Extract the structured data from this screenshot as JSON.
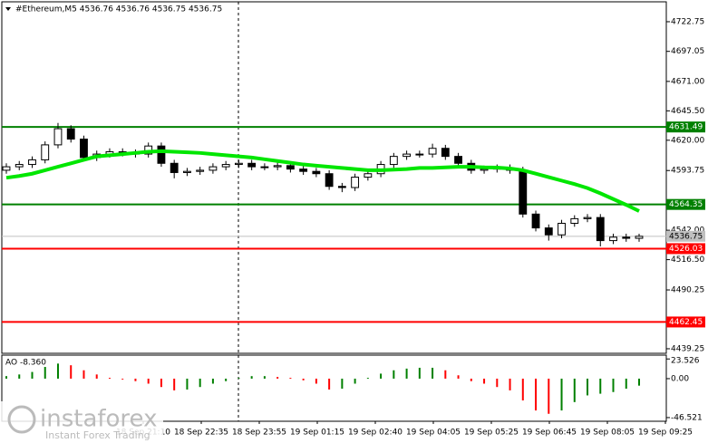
{
  "chart_data": {
    "type": "candlestick",
    "title": "#Ethereum,M5  4536.76 4536.76 4536.75 4536.75",
    "open": [
      4594,
      4597,
      4599,
      4603,
      4616,
      4630,
      4621,
      4605,
      4608,
      4610,
      4609,
      4608,
      4615,
      4600,
      4592,
      4593,
      4594,
      4597,
      4599,
      4600,
      4597,
      4597,
      4598,
      4595,
      4593,
      4591,
      4580,
      4579,
      4588,
      4591,
      4599,
      4606,
      4608,
      4608,
      4613,
      4606,
      4600,
      4594,
      4595,
      4596,
      4594,
      4556,
      4544,
      4538,
      4548,
      4552,
      4553,
      4533,
      4536,
      4535
    ],
    "high": [
      4600,
      4602,
      4606,
      4619,
      4635,
      4633,
      4624,
      4611,
      4613,
      4613,
      4612,
      4618,
      4618,
      4603,
      4596,
      4597,
      4600,
      4602,
      4603,
      4603,
      4600,
      4601,
      4601,
      4598,
      4596,
      4594,
      4583,
      4591,
      4594,
      4602,
      4609,
      4611,
      4611,
      4617,
      4616,
      4609,
      4603,
      4598,
      4599,
      4599,
      4597,
      4559,
      4547,
      4551,
      4555,
      4556,
      4556,
      4539,
      4539,
      4539
    ],
    "low": [
      4591,
      4594,
      4596,
      4600,
      4613,
      4618,
      4602,
      4602,
      4605,
      4606,
      4605,
      4605,
      4597,
      4587,
      4589,
      4590,
      4591,
      4594,
      4596,
      4594,
      4594,
      4594,
      4592,
      4590,
      4588,
      4577,
      4575,
      4576,
      4585,
      4588,
      4596,
      4603,
      4605,
      4605,
      4603,
      4597,
      4591,
      4591,
      4592,
      4591,
      4553,
      4541,
      4533,
      4535,
      4545,
      4549,
      4528,
      4530,
      4532,
      4532
    ],
    "close": [
      4597,
      4599,
      4603,
      4616,
      4630,
      4621,
      4605,
      4608,
      4610,
      4609,
      4608,
      4615,
      4600,
      4592,
      4593,
      4594,
      4597,
      4599,
      4600,
      4597,
      4597,
      4598,
      4595,
      4593,
      4591,
      4580,
      4579,
      4588,
      4591,
      4599,
      4606,
      4608,
      4608,
      4613,
      4606,
      4600,
      4594,
      4595,
      4596,
      4594,
      4556,
      4544,
      4538,
      4548,
      4552,
      4553,
      4533,
      4536,
      4535,
      4536.75
    ],
    "up_color": "#ffffff",
    "down_color": "#000000",
    "ma": {
      "color": "#00e600",
      "values": [
        4587.5,
        4589,
        4591,
        4594,
        4597,
        4600,
        4603,
        4606,
        4607,
        4608,
        4609,
        4610,
        4610.5,
        4610,
        4609.5,
        4609,
        4608,
        4607,
        4606,
        4605,
        4603.5,
        4602,
        4600.5,
        4599,
        4598,
        4597,
        4596,
        4595,
        4594,
        4594,
        4594.5,
        4595,
        4596,
        4596,
        4596.5,
        4597,
        4597,
        4596.5,
        4596.3,
        4595.5,
        4594,
        4591,
        4588,
        4585,
        4582,
        4578.5,
        4574,
        4569,
        4564,
        4558.6
      ]
    },
    "ylim": [
      4435.3,
      4740.0
    ],
    "yticks": [
      4722.75,
      4697.05,
      {
        "value": 4671,
        "label": "4671.00"
      },
      {
        "value": 4645.5,
        "label": "4645.50"
      },
      {
        "value": 4620,
        "label": "4620.00"
      },
      4593.75,
      {
        "value": 4542,
        "label": "4542.00"
      },
      {
        "value": 4516.5,
        "label": "4516.50"
      },
      4490.25,
      4439.25
    ],
    "levels": [
      {
        "value": 4631.49,
        "color": "#008000"
      },
      {
        "value": 4564.35,
        "color": "#008000"
      },
      {
        "value": 4526.03,
        "color": "#ff0000"
      },
      {
        "value": 4462.45,
        "color": "#ff0000"
      }
    ],
    "last_price": {
      "value": 4536.75,
      "color": "#c0c0c0"
    },
    "x_labels": [
      "18 Sep 21:10",
      "18 Sep 22:35",
      "18 Sep 23:55",
      "19 Sep 01:15",
      "19 Sep 02:40",
      "19 Sep 04:05",
      "19 Sep 05:25",
      "19 Sep 06:45",
      "19 Sep 08:05",
      "19 Sep 09:25"
    ],
    "ao": {
      "label": "AO -8.360",
      "up_color": "#008000",
      "down_color": "#ff0000",
      "values": [
        3,
        5,
        8,
        14,
        18,
        16,
        10,
        5,
        1,
        -1,
        -3,
        -6,
        -10,
        -14,
        -13,
        -10,
        -6,
        -3,
        1,
        3,
        3,
        2,
        1,
        -2,
        -6,
        -13,
        -12,
        -6,
        1,
        6,
        10,
        12,
        13,
        13,
        10,
        4,
        -3,
        -6,
        -10,
        -14,
        -26,
        -38,
        -42,
        -38,
        -28,
        -20,
        -18,
        -16,
        -12,
        -8.36
      ],
      "ylim": [
        -50.9,
        28.1
      ],
      "yticks": [
        23.526,
        {
          "value": 0,
          "label": "0.00"
        },
        -46.521
      ]
    },
    "logo": {
      "name": "instaforex",
      "tagline": "Instant Forex Trading"
    }
  }
}
